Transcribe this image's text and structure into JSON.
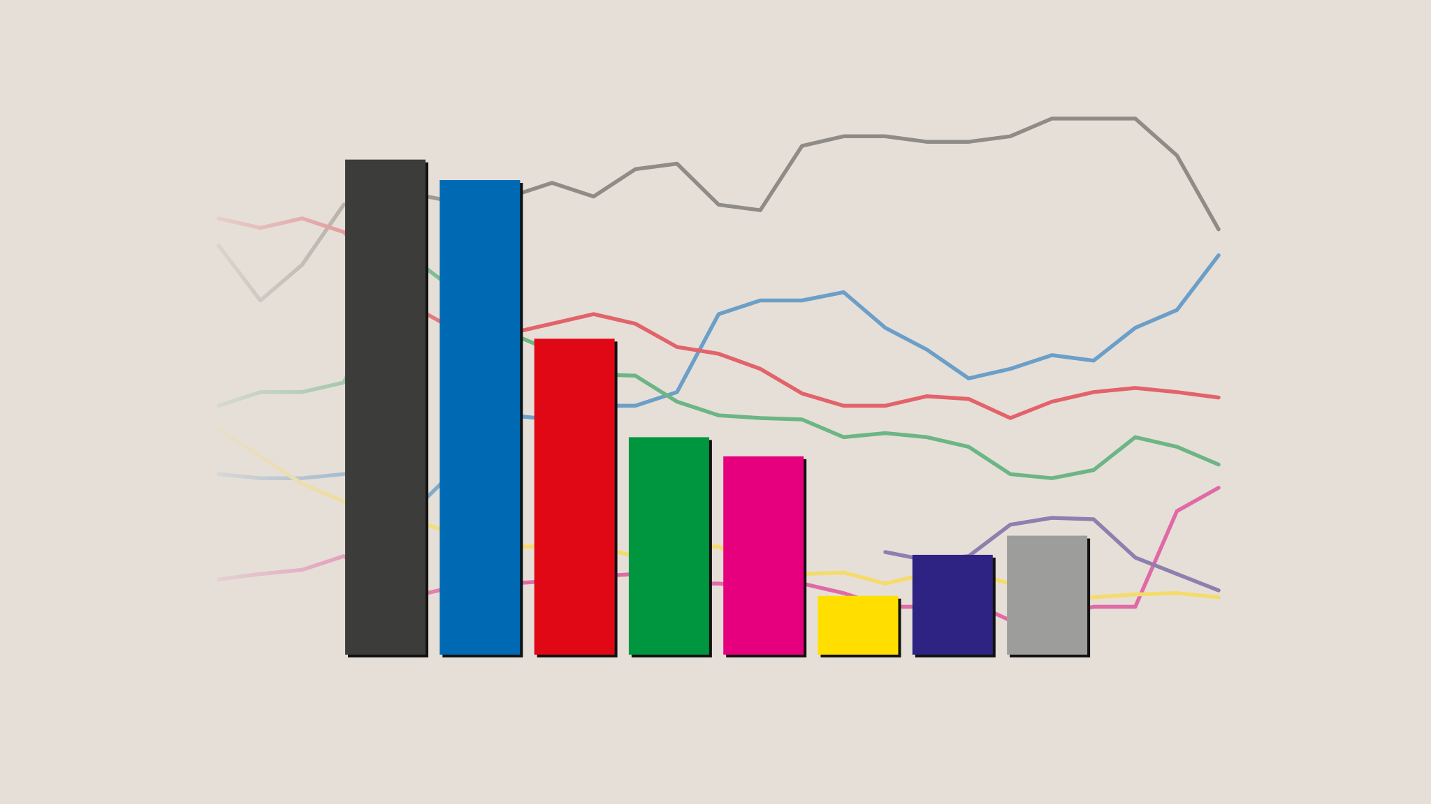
{
  "chart_data": [
    {
      "type": "line",
      "x": [
        0,
        1,
        2,
        3,
        4,
        5,
        6,
        7,
        8,
        9,
        10,
        11,
        12,
        13,
        14,
        15,
        16,
        17,
        18,
        19,
        20,
        21,
        22,
        23,
        24
      ],
      "xlim": [
        0,
        24
      ],
      "ylim": [
        0,
        42
      ],
      "series": [
        {
          "color": "#8f8b86",
          "values": [
            29.9,
            25.9,
            28.5,
            32.9,
            33.5,
            33.5,
            32.9,
            33.5,
            34.5,
            33.5,
            35.5,
            35.9,
            32.9,
            32.5,
            37.2,
            37.9,
            37.9,
            37.5,
            37.5,
            37.9,
            39.2,
            39.2,
            39.2,
            36.5,
            31.1
          ]
        },
        {
          "color": "#6b9fc8",
          "values": [
            13.2,
            12.9,
            12.9,
            13.2,
            13.2,
            11.5,
            14.5,
            17.5,
            17.2,
            18.2,
            18.2,
            19.2,
            24.9,
            25.9,
            25.9,
            26.5,
            23.9,
            22.3,
            20.2,
            20.9,
            21.9,
            21.5,
            23.9,
            25.2,
            29.2
          ]
        },
        {
          "color": "#e2636a",
          "values": [
            31.9,
            31.2,
            31.9,
            30.9,
            27.9,
            24.9,
            23.2,
            23.5,
            24.2,
            24.9,
            24.2,
            22.5,
            22.0,
            20.9,
            19.1,
            18.2,
            18.2,
            18.9,
            18.7,
            17.3,
            18.5,
            19.2,
            19.5,
            19.2,
            18.8
          ]
        },
        {
          "color": "#6cb585",
          "values": [
            18.2,
            19.2,
            19.2,
            19.9,
            25.9,
            28.2,
            25.9,
            23.5,
            22.2,
            20.5,
            20.4,
            18.5,
            17.5,
            17.3,
            17.2,
            15.9,
            16.2,
            15.9,
            15.2,
            13.2,
            12.9,
            13.5,
            15.9,
            15.2,
            13.9
          ]
        },
        {
          "color": "#e06aa5",
          "values": [
            5.5,
            5.9,
            6.2,
            7.2,
            5.2,
            4.5,
            5.2,
            5.2,
            5.4,
            5.7,
            5.9,
            5.2,
            5.2,
            4.9,
            5.2,
            4.5,
            3.5,
            3.5,
            3.9,
            2.5,
            2.9,
            3.5,
            3.5,
            10.5,
            12.2
          ]
        },
        {
          "color": "#f5dc6a",
          "values": [
            16.5,
            14.5,
            12.5,
            11.2,
            9.5,
            9.5,
            8.5,
            7.9,
            7.9,
            7.9,
            7.2,
            7.9,
            7.9,
            6.5,
            5.9,
            6.0,
            5.2,
            5.9,
            6.0,
            5.2,
            3.9,
            4.2,
            4.4,
            4.5,
            4.2
          ]
        },
        {
          "color": "#8d7fae",
          "values": [
            null,
            null,
            null,
            null,
            null,
            null,
            null,
            null,
            null,
            null,
            null,
            null,
            null,
            null,
            null,
            null,
            7.5,
            6.9,
            7.2,
            9.5,
            10.0,
            9.9,
            7.1,
            5.9,
            4.7
          ]
        }
      ]
    },
    {
      "type": "bar",
      "categories": [
        null,
        null,
        null,
        null,
        null,
        null,
        null,
        null
      ],
      "values": [
        36.2,
        34.7,
        23.1,
        15.9,
        14.5,
        4.3,
        7.3,
        8.7
      ],
      "colors": [
        "#3c3c3b",
        "#0069b4",
        "#e10816",
        "#00963f",
        "#e6007e",
        "#ffde00",
        "#2e2382",
        "#9d9d9c"
      ],
      "ylim": [
        0,
        42
      ]
    }
  ]
}
